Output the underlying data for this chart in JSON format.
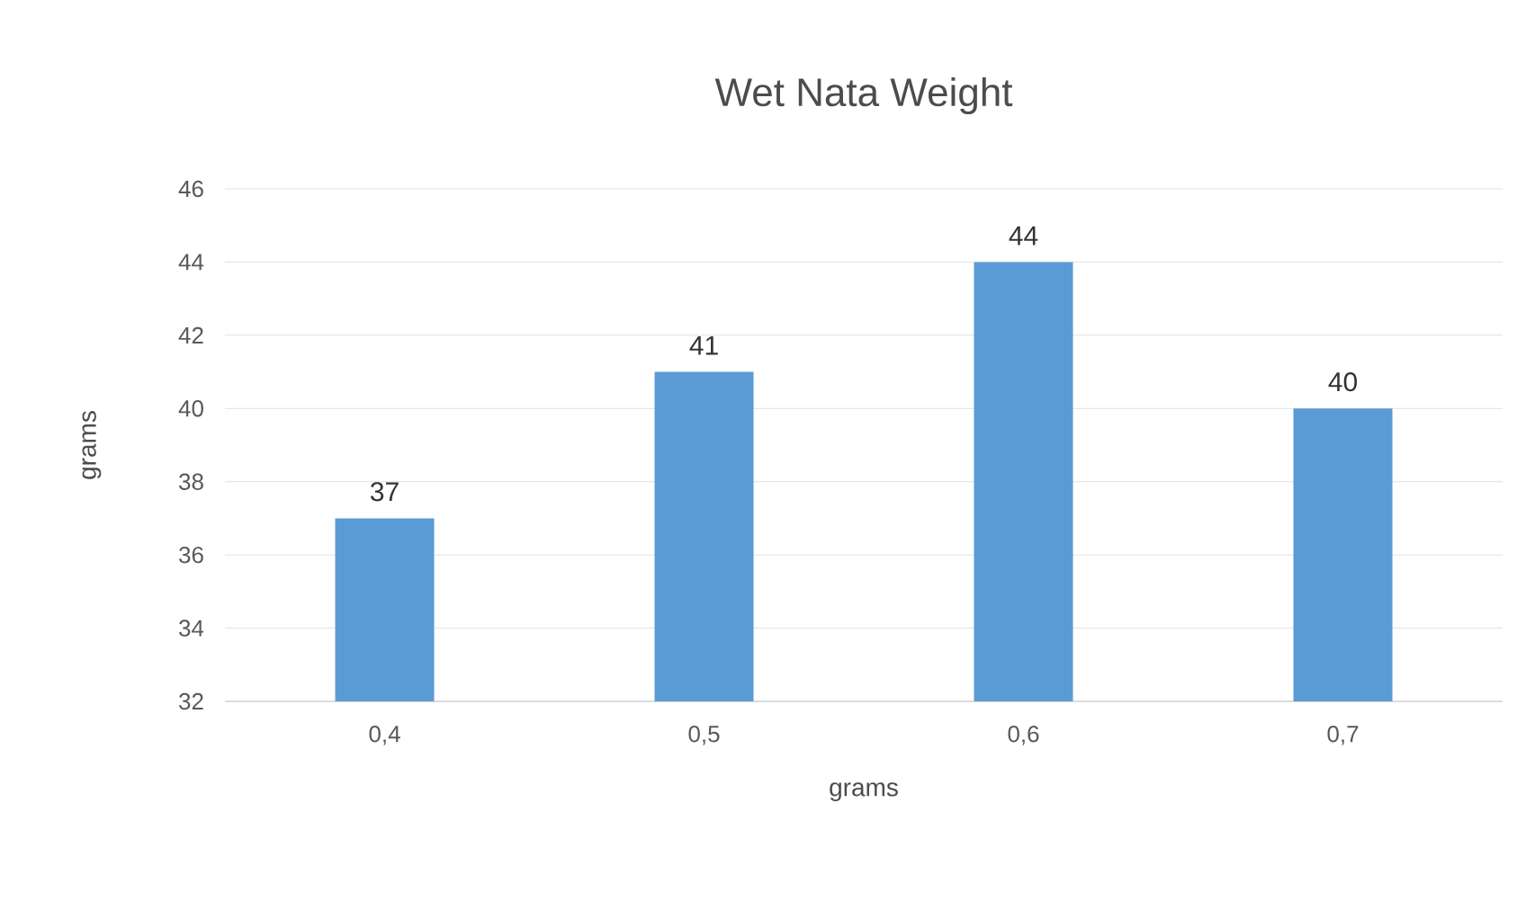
{
  "chart_data": {
    "type": "bar",
    "title": "Wet Nata Weight",
    "xlabel": "grams",
    "ylabel": "grams",
    "categories": [
      "0,4",
      "0,5",
      "0,6",
      "0,7"
    ],
    "values": [
      37,
      41,
      44,
      40
    ],
    "color": "#5b9bd5",
    "ylim": [
      32,
      46
    ],
    "yticks": [
      32,
      34,
      36,
      38,
      40,
      42,
      44,
      46
    ],
    "grid": "y",
    "data_labels": true
  }
}
